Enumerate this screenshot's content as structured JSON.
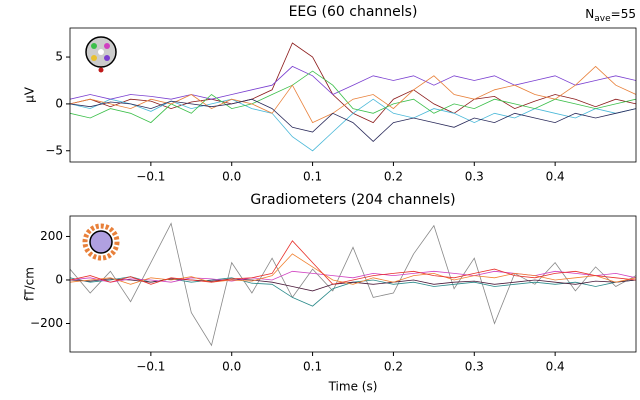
{
  "chart_data": [
    {
      "type": "line",
      "title": "EEG (60 channels)",
      "ylabel": "µV",
      "nave": {
        "base": "N",
        "sub": "ave",
        "rest": "=55"
      },
      "xlim": [
        -0.2,
        0.5
      ],
      "ylim": [
        -6.2,
        8.1
      ],
      "xticks": [
        {
          "value": -0.1,
          "label": "−0.1"
        },
        {
          "value": 0,
          "label": "0.0"
        },
        0.1,
        0.2,
        0.3,
        0.4
      ],
      "yticks": [
        {
          "value": -5,
          "label": "−5"
        },
        0,
        5
      ],
      "x": [
        -0.2,
        -0.175,
        -0.15,
        -0.125,
        -0.1,
        -0.075,
        -0.05,
        -0.025,
        0,
        0.025,
        0.05,
        0.075,
        0.1,
        0.125,
        0.15,
        0.175,
        0.2,
        0.225,
        0.25,
        0.275,
        0.3,
        0.325,
        0.35,
        0.375,
        0.4,
        0.425,
        0.45,
        0.475,
        0.5
      ],
      "series": [
        {
          "color": "#8b1a1a",
          "values": [
            0,
            0.5,
            -0.3,
            0.5,
            0.3,
            -0.5,
            0.2,
            0.5,
            0,
            0.5,
            1.5,
            6.5,
            5,
            1,
            -1,
            -2,
            0.5,
            1.5,
            0,
            -1,
            0.5,
            0.8,
            -0.5,
            0.3,
            1,
            0.5,
            -0.3,
            0.5,
            0
          ]
        },
        {
          "color": "#4ab8d8",
          "values": [
            0,
            -0.5,
            0.5,
            0,
            -0.8,
            0.3,
            -0.5,
            0,
            0.5,
            -0.5,
            -1,
            -3.5,
            -5,
            -3,
            -1,
            0.5,
            -1,
            -1.5,
            -0.5,
            -1,
            -2,
            -1,
            -1.5,
            -0.5,
            -1,
            -1.5,
            -0.5,
            -1,
            -0.5
          ]
        },
        {
          "color": "#7a3fd0",
          "values": [
            0.5,
            1,
            0.5,
            1,
            0.8,
            0.5,
            1,
            0.5,
            1,
            1.5,
            2,
            4,
            3,
            1,
            2,
            3,
            2.5,
            3,
            2,
            3,
            2.5,
            3,
            2,
            2.5,
            3,
            2,
            2.5,
            3,
            2.5
          ]
        },
        {
          "color": "#3cbf4a",
          "values": [
            -1,
            -1.5,
            -0.5,
            -1,
            -2,
            0,
            -1,
            1,
            -0.5,
            0,
            1,
            2,
            3.5,
            2,
            -0.5,
            -1,
            0,
            0.5,
            -1,
            0,
            -0.5,
            0.5,
            0,
            -0.5,
            0.5,
            0,
            -0.5,
            0,
            0.5
          ]
        },
        {
          "color": "#e8803a",
          "values": [
            0,
            0.5,
            0,
            -0.5,
            0.5,
            0,
            1,
            -0.5,
            0.5,
            0,
            -1,
            2,
            -2,
            -1,
            0.5,
            1,
            -0.5,
            1.5,
            3,
            1,
            0.5,
            1.5,
            2,
            1,
            0.5,
            2,
            4,
            2,
            1
          ]
        },
        {
          "color": "#2a2a5a",
          "values": [
            0,
            -0.3,
            0.2,
            0,
            -0.5,
            0.3,
            0,
            -0.3,
            0,
            0.5,
            -0.5,
            -2.5,
            -3,
            -1,
            -2,
            -4,
            -2,
            -1.5,
            -2,
            -2.5,
            -1.5,
            -2,
            -1,
            -1.5,
            -2,
            -1,
            -1.5,
            -1,
            -0.5
          ]
        }
      ]
    },
    {
      "type": "line",
      "title": "Gradiometers (204 channels)",
      "ylabel": "fT/cm",
      "xlabel": "Time (s)",
      "xlim": [
        -0.2,
        0.5
      ],
      "ylim": [
        -331,
        294
      ],
      "xticks": [
        {
          "value": -0.1,
          "label": "−0.1"
        },
        {
          "value": 0,
          "label": "0.0"
        },
        0.1,
        0.2,
        0.3,
        0.4
      ],
      "yticks": [
        {
          "value": -200,
          "label": "−200"
        },
        0,
        200
      ],
      "x": [
        -0.2,
        -0.175,
        -0.15,
        -0.125,
        -0.1,
        -0.075,
        -0.05,
        -0.025,
        0,
        0.025,
        0.05,
        0.075,
        0.1,
        0.125,
        0.15,
        0.175,
        0.2,
        0.225,
        0.25,
        0.275,
        0.3,
        0.325,
        0.35,
        0.375,
        0.4,
        0.425,
        0.45,
        0.475,
        0.5
      ],
      "series": [
        {
          "color": "#888888",
          "values": [
            50,
            -60,
            40,
            -100,
            80,
            260,
            -150,
            -300,
            80,
            -60,
            100,
            -80,
            50,
            -50,
            150,
            -80,
            -60,
            120,
            250,
            -40,
            100,
            -200,
            30,
            -20,
            80,
            -50,
            60,
            -30,
            20
          ]
        },
        {
          "color": "#2a8a8a",
          "values": [
            10,
            -10,
            0,
            15,
            -10,
            5,
            -10,
            0,
            10,
            -15,
            -20,
            -80,
            -120,
            -40,
            -10,
            0,
            -20,
            -10,
            -30,
            -20,
            -10,
            -30,
            -20,
            -10,
            -20,
            -10,
            -30,
            -10,
            0
          ]
        },
        {
          "color": "#4a1a3a",
          "values": [
            0,
            -5,
            5,
            0,
            -10,
            5,
            0,
            -5,
            5,
            0,
            -10,
            -30,
            -50,
            -20,
            -10,
            -20,
            -10,
            0,
            -20,
            -10,
            -5,
            -20,
            -10,
            0,
            -10,
            -20,
            -5,
            -10,
            0
          ]
        },
        {
          "color": "#d040c0",
          "values": [
            0,
            10,
            -10,
            5,
            0,
            -10,
            10,
            5,
            -5,
            10,
            0,
            40,
            30,
            20,
            10,
            30,
            20,
            30,
            40,
            30,
            20,
            40,
            30,
            20,
            40,
            30,
            20,
            30,
            10
          ]
        },
        {
          "color": "#f08030",
          "values": [
            -10,
            0,
            10,
            -20,
            10,
            0,
            15,
            -10,
            0,
            -5,
            20,
            120,
            60,
            0,
            -20,
            10,
            -10,
            20,
            30,
            0,
            20,
            10,
            30,
            20,
            0,
            10,
            20,
            -10,
            10
          ]
        },
        {
          "color": "#e8302a",
          "values": [
            0,
            20,
            -10,
            15,
            -20,
            10,
            0,
            -10,
            5,
            10,
            30,
            180,
            80,
            -20,
            0,
            20,
            30,
            40,
            20,
            10,
            30,
            50,
            20,
            10,
            30,
            40,
            20,
            10,
            0
          ]
        }
      ]
    }
  ]
}
